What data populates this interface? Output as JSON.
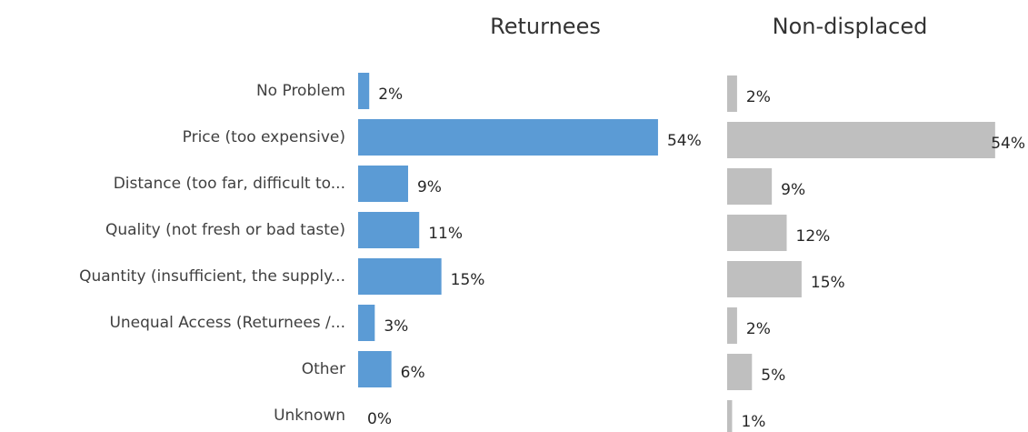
{
  "chart_data": [
    {
      "type": "bar",
      "title": "Returnees",
      "color": "#5b9bd5",
      "categories": [
        "No Problem",
        "Price (too expensive)",
        "Distance (too far, difficult to...",
        "Quality (not fresh or bad taste)",
        "Quantity (insufficient, the supply...",
        "Unequal Access (Returnees /...",
        "Other",
        "Unknown"
      ],
      "values": [
        2,
        54,
        9,
        11,
        15,
        3,
        6,
        0
      ],
      "value_labels": [
        "2%",
        "54%",
        "9%",
        "11%",
        "15%",
        "3%",
        "6%",
        "0%"
      ]
    },
    {
      "type": "bar",
      "title": "Non-displaced",
      "color": "#bfbfbf",
      "values": [
        2,
        54,
        9,
        12,
        15,
        2,
        5,
        1
      ],
      "value_labels": [
        "2%",
        "54%",
        "9%",
        "12%",
        "15%",
        "2%",
        "5%",
        "1%"
      ]
    }
  ]
}
